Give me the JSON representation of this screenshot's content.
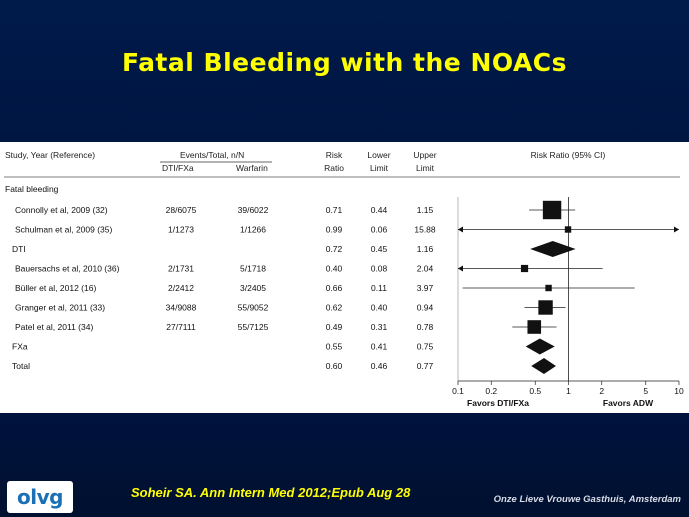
{
  "slide_title": "Fatal Bleeding with the NOACs",
  "table": {
    "headers": {
      "study": "Study, Year (Reference)",
      "events_total": "Events/Total, n/N",
      "dti_fxa": "DTI/FXa",
      "warfarin": "Warfarin",
      "risk_ratio_line1": "Risk",
      "risk_ratio_line2": "Ratio",
      "lower_line1": "Lower",
      "lower_line2": "Limit",
      "upper_line1": "Upper",
      "upper_line2": "Limit",
      "forest": "Risk Ratio (95% CI)"
    },
    "section_label": "Fatal bleeding",
    "rows": [
      {
        "study": "Connolly et al, 2009 (32)",
        "dti": "28/6075",
        "warfarin": "39/6022",
        "rr": "0.71",
        "lower": "0.44",
        "upper": "1.15",
        "marker": "square",
        "weight": 0.9
      },
      {
        "study": "Schulman et al, 2009 (35)",
        "dti": "1/1273",
        "warfarin": "1/1266",
        "rr": "0.99",
        "lower": "0.06",
        "upper": "15.88",
        "marker": "square",
        "weight": 0.15
      },
      {
        "study": "DTI",
        "dti": "",
        "warfarin": "",
        "rr": "0.72",
        "lower": "0.45",
        "upper": "1.16",
        "marker": "diamond",
        "weight": 1
      },
      {
        "study": "Bauersachs et al, 2010 (36)",
        "dti": "2/1731",
        "warfarin": "5/1718",
        "rr": "0.40",
        "lower": "0.08",
        "upper": "2.04",
        "marker": "square",
        "weight": 0.2
      },
      {
        "study": "Büller et al, 2012 (16)",
        "dti": "2/2412",
        "warfarin": "3/2405",
        "rr": "0.66",
        "lower": "0.11",
        "upper": "3.97",
        "marker": "square",
        "weight": 0.15
      },
      {
        "study": "Granger et al, 2011 (33)",
        "dti": "34/9088",
        "warfarin": "55/9052",
        "rr": "0.62",
        "lower": "0.40",
        "upper": "0.94",
        "marker": "square",
        "weight": 0.65
      },
      {
        "study": "Patel et al, 2011 (34)",
        "dti": "27/7111",
        "warfarin": "55/7125",
        "rr": "0.49",
        "lower": "0.31",
        "upper": "0.78",
        "marker": "square",
        "weight": 0.6
      },
      {
        "study": "FXa",
        "dti": "",
        "warfarin": "",
        "rr": "0.55",
        "lower": "0.41",
        "upper": "0.75",
        "marker": "diamond",
        "weight": 1
      },
      {
        "study": "Total",
        "dti": "",
        "warfarin": "",
        "rr": "0.60",
        "lower": "0.46",
        "upper": "0.77",
        "marker": "diamond",
        "weight": 1
      }
    ]
  },
  "chart_data": {
    "type": "forest",
    "scale": "log",
    "xlim": [
      0.1,
      10
    ],
    "xticks": [
      "0.1",
      "0.2",
      "0.5",
      "1",
      "2",
      "5",
      "10"
    ],
    "xtick_values": [
      0.1,
      0.2,
      0.5,
      1,
      2,
      5,
      10
    ],
    "reference_line": 1,
    "left_label": "Favors DTI/FXa",
    "right_label": "Favors ADW",
    "series": [
      {
        "name": "Connolly et al, 2009 (32)",
        "estimate": 0.71,
        "lower": 0.44,
        "upper": 1.15
      },
      {
        "name": "Schulman et al, 2009 (35)",
        "estimate": 0.99,
        "lower": 0.06,
        "upper": 15.88
      },
      {
        "name": "DTI",
        "estimate": 0.72,
        "lower": 0.45,
        "upper": 1.16
      },
      {
        "name": "Bauersachs et al, 2010 (36)",
        "estimate": 0.4,
        "lower": 0.08,
        "upper": 2.04
      },
      {
        "name": "Büller et al, 2012 (16)",
        "estimate": 0.66,
        "lower": 0.11,
        "upper": 3.97
      },
      {
        "name": "Granger et al, 2011 (33)",
        "estimate": 0.62,
        "lower": 0.4,
        "upper": 0.94
      },
      {
        "name": "Patel et al, 2011 (34)",
        "estimate": 0.49,
        "lower": 0.31,
        "upper": 0.78
      },
      {
        "name": "FXa",
        "estimate": 0.55,
        "lower": 0.41,
        "upper": 0.75
      },
      {
        "name": "Total",
        "estimate": 0.6,
        "lower": 0.46,
        "upper": 0.77
      }
    ]
  },
  "citation": "Soheir SA. Ann Intern Med 2012;Epub Aug 28",
  "logo_text": "olvg",
  "hospital": "Onze Lieve Vrouwe Gasthuis, Amsterdam",
  "colors": {
    "background": "#001a4a",
    "title": "#ffff00",
    "citation": "#ffff00",
    "logo": "#1a6fb5"
  }
}
